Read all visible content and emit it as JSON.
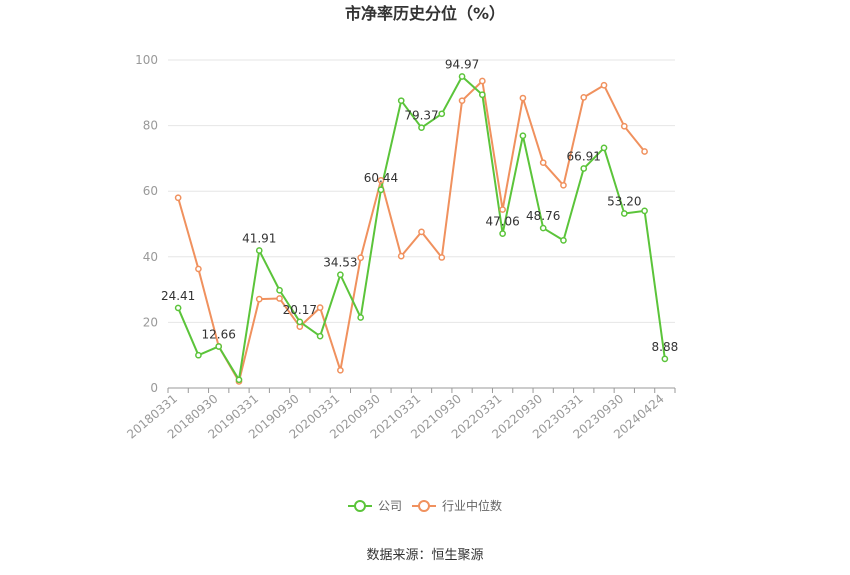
{
  "chart_data": {
    "type": "line",
    "title": "市净率历史分位（%）",
    "source": "数据来源：恒生聚源",
    "ylim": [
      0,
      100
    ],
    "yticks": [
      0,
      20,
      40,
      60,
      80,
      100
    ],
    "x_tick_labels": [
      "20180331",
      "20180930",
      "20190331",
      "20190930",
      "20200331",
      "20200930",
      "20210331",
      "20210930",
      "20220331",
      "20220930",
      "20230331",
      "20230930",
      "20240424"
    ],
    "x": [
      "20180331",
      "20180630",
      "20180930",
      "20181231",
      "20190331",
      "20190630",
      "20190930",
      "20191231",
      "20200331",
      "20200630",
      "20200930",
      "20201231",
      "20210331",
      "20210630",
      "20210930",
      "20211231",
      "20220331",
      "20220630",
      "20220930",
      "20221231",
      "20230331",
      "20230630",
      "20230930",
      "20231231",
      "20240424"
    ],
    "series": [
      {
        "name": "公司",
        "color": "#5bc43a",
        "values": [
          24.41,
          10.0,
          12.66,
          2.5,
          41.91,
          29.8,
          20.17,
          15.8,
          34.53,
          21.5,
          60.44,
          87.6,
          79.37,
          83.6,
          94.97,
          89.4,
          47.06,
          76.9,
          48.76,
          45.0,
          66.91,
          73.2,
          53.2,
          54.0,
          8.88
        ],
        "labels": {
          "0": "24.41",
          "2": "12.66",
          "4": "41.91",
          "6": "20.17",
          "8": "34.53",
          "10": "60.44",
          "12": "79.37",
          "14": "94.97",
          "16": "47.06",
          "18": "48.76",
          "20": "66.91",
          "22": "53.20",
          "24": "8.88"
        }
      },
      {
        "name": "行业中位数",
        "color": "#f0915e",
        "values": [
          58.0,
          36.3,
          12.7,
          2.0,
          27.1,
          27.3,
          18.7,
          24.5,
          5.4,
          39.7,
          63.3,
          40.2,
          47.6,
          39.8,
          87.6,
          93.6,
          54.4,
          88.4,
          68.7,
          61.8,
          88.6,
          92.3,
          79.8,
          72.1,
          null
        ]
      }
    ],
    "legend_position": "bottom-center",
    "grid": true
  }
}
